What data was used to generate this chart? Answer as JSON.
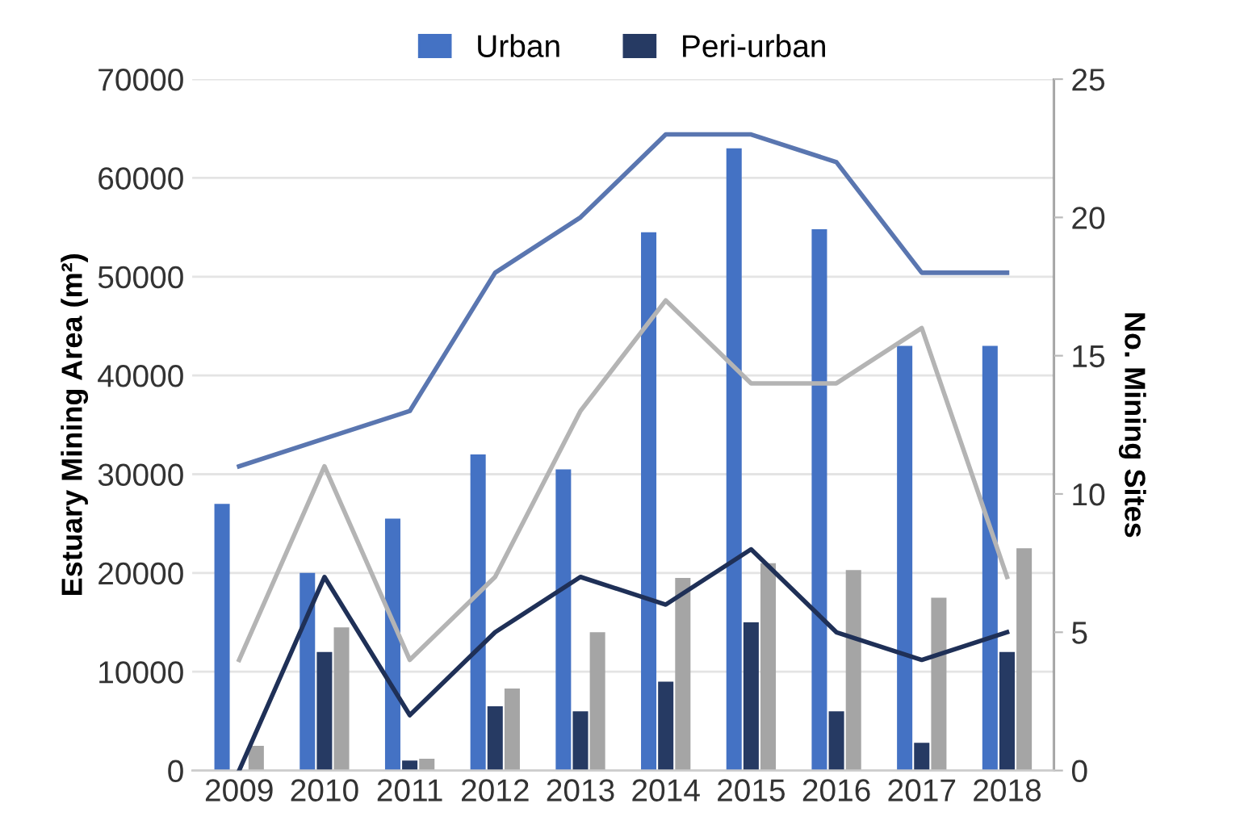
{
  "chart_data": {
    "type": "bar",
    "categories": [
      "2009",
      "2010",
      "2011",
      "2012",
      "2013",
      "2014",
      "2015",
      "2016",
      "2017",
      "2018"
    ],
    "ylabel": "Estuary Mining Area (m²)",
    "y2label": "No. Mining Sites",
    "ylim": [
      0,
      70000
    ],
    "yticks": [
      0,
      10000,
      20000,
      30000,
      40000,
      50000,
      60000,
      70000
    ],
    "y2lim": [
      0,
      25
    ],
    "y2ticks": [
      0,
      5,
      10,
      15,
      20,
      25
    ],
    "grid": "y",
    "legend": "top",
    "marker": "none",
    "line_style": "solid",
    "series": [
      {
        "name": "Urban",
        "color": "#4472c4",
        "values": [
          27000,
          20000,
          25500,
          32000,
          30500,
          54500,
          63000,
          54800,
          43000,
          43000
        ]
      },
      {
        "name": "Peri-urban",
        "color": "#263a63",
        "values": [
          0,
          12000,
          1000,
          6500,
          6000,
          9000,
          15000,
          6000,
          2800,
          12000
        ]
      },
      {
        "color": "#a5a5a5",
        "values": [
          2500,
          14500,
          1200,
          8300,
          14000,
          19500,
          21000,
          20300,
          17500,
          22500
        ]
      },
      {
        "type": "line",
        "axis": "y2",
        "color": "#5a76b0",
        "values": [
          11,
          12,
          13,
          18,
          20,
          23,
          23,
          22,
          18,
          18
        ]
      },
      {
        "type": "line",
        "axis": "y2",
        "color": "#b4b4b4",
        "values": [
          4,
          11,
          4,
          7,
          13,
          17,
          14,
          14,
          16,
          7
        ]
      },
      {
        "type": "line",
        "axis": "y2",
        "color": "#1f3057",
        "values": [
          0,
          7,
          2,
          5,
          7,
          6,
          8,
          5,
          4,
          5
        ]
      }
    ]
  }
}
